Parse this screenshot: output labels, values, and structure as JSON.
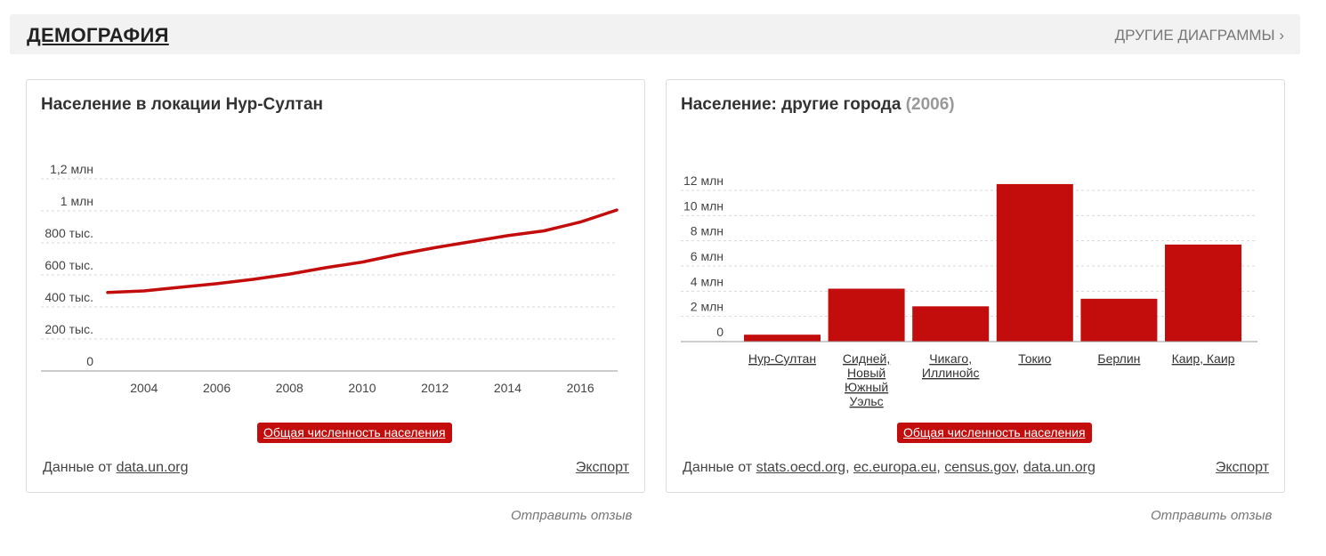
{
  "header": {
    "title": "ДЕМОГРАФИЯ",
    "more_link": "ДРУГИЕ ДИАГРАММЫ ›"
  },
  "left": {
    "title": "Население в локации Нур-Султан",
    "series_button": "Общая численность населения",
    "source_prefix": "Данные от",
    "sources": [
      "data.un.org"
    ],
    "export": "Экспорт",
    "feedback": "Отправить отзыв"
  },
  "right": {
    "title": "Население: другие города",
    "title_year": "(2006)",
    "series_button": "Общая численность населения",
    "source_prefix": "Данные от",
    "sources": [
      "stats.oecd.org",
      "ec.europa.eu",
      "census.gov",
      "data.un.org"
    ],
    "export": "Экспорт",
    "feedback": "Отправить отзыв"
  },
  "colors": {
    "series": "#c30d0d",
    "header_bg": "#f2f2f2"
  },
  "chart_data": [
    {
      "type": "line",
      "title": "Население в локации Нур-Султан",
      "x": [
        2003,
        2004,
        2005,
        2006,
        2007,
        2008,
        2009,
        2010,
        2011,
        2012,
        2013,
        2014,
        2015,
        2016,
        2017
      ],
      "series": [
        {
          "values": [
            490000,
            500000,
            523000,
            545000,
            572000,
            605000,
            645000,
            680000,
            728000,
            770000,
            808000,
            845000,
            875000,
            930000,
            1005000
          ]
        }
      ],
      "ylim": [
        0,
        1200000
      ],
      "yticks": [
        0,
        200000,
        400000,
        600000,
        800000,
        1000000,
        1200000
      ],
      "ytick_labels": [
        "0",
        "200 тыс.",
        "400 тыс.",
        "600 тыс.",
        "800 тыс.",
        "1 млн",
        "1,2 млн"
      ],
      "xlim": [
        2003,
        2017
      ],
      "xticks": [
        2004,
        2006,
        2008,
        2010,
        2012,
        2014,
        2016
      ],
      "xtick_labels": [
        "2004",
        "2006",
        "2008",
        "2010",
        "2012",
        "2014",
        "2016"
      ],
      "grid": true
    },
    {
      "type": "bar",
      "title": "Население: другие города (2006)",
      "categories": [
        "Нур-Султан",
        "Сидней, Новый Южный Уэльс",
        "Чикаго, Иллинойс",
        "Токио",
        "Берлин",
        "Каир, Каир"
      ],
      "category_lines": [
        [
          "Нур-Султан"
        ],
        [
          "Сидней,",
          "Новый",
          "Южный",
          "Уэльс"
        ],
        [
          "Чикаго,",
          "Иллинойс"
        ],
        [
          "Токио"
        ],
        [
          "Берлин"
        ],
        [
          "Каир, Каир"
        ]
      ],
      "values": [
        550000,
        4200000,
        2800000,
        12500000,
        3400000,
        7700000
      ],
      "ylim": [
        0,
        12000000
      ],
      "yticks": [
        0,
        2000000,
        4000000,
        6000000,
        8000000,
        10000000,
        12000000
      ],
      "ytick_labels": [
        "0",
        "2 млн",
        "4 млн",
        "6 млн",
        "8 млн",
        "10 млн",
        "12 млн"
      ],
      "grid": true
    }
  ]
}
